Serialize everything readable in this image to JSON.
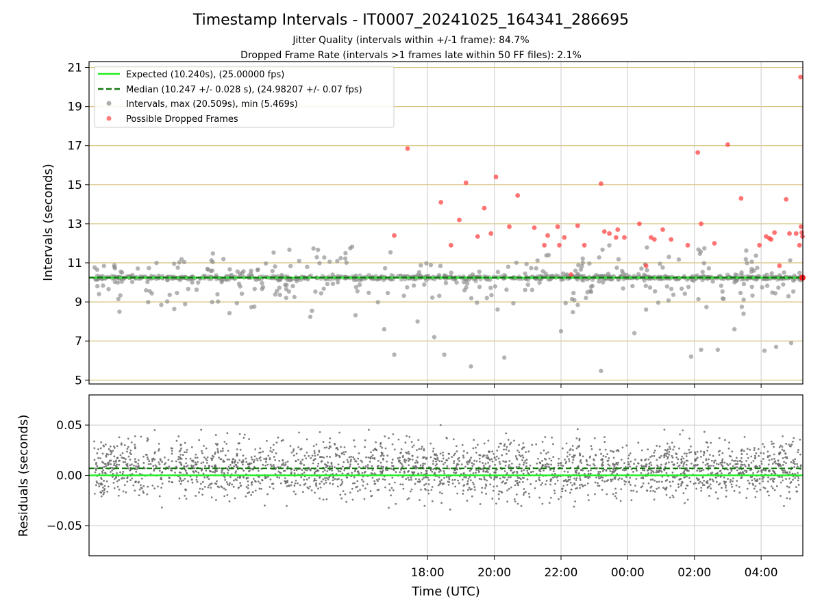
{
  "chart_data": [
    {
      "type": "scatter",
      "title": "Timestamp Intervals - IT0007_20241025_164341_286695",
      "subtitle_lines": [
        "Jitter Quality (intervals within +/-1 frame): 84.7%",
        "Dropped Frame Rate (intervals >1 frames late within 50 FF files): 2.1%"
      ],
      "ylabel": "Intervals (seconds)",
      "ylim": [
        4.8,
        21.3
      ],
      "xlim": [
        -16.15,
        5.25
      ],
      "yticks": [
        5,
        7,
        9,
        11,
        13,
        15,
        17,
        19,
        21
      ],
      "grid": true,
      "legend_position": "top-left",
      "colors": {
        "expected": "#22ee22",
        "median": "#117711",
        "intervals": "#8a8a8a",
        "dropped": "#ff4444",
        "hgrid": "#d8c27a"
      },
      "legend": [
        "Expected (10.240s), (25.00000 fps)",
        "Median (10.247 +/- 0.028 s), (24.98207 +/- 0.07 fps)",
        "Intervals, max (20.509s), min (5.469s)",
        "Possible Dropped Frames"
      ],
      "expected_interval": 10.24,
      "median_interval": 10.247,
      "series": [
        {
          "name": "Possible Dropped Frames",
          "kind": "dropped",
          "x": [
            -7.0,
            -6.6,
            -5.3,
            -5.05,
            -4.85,
            -4.5,
            -4.1,
            -3.95,
            -3.55,
            -3.3,
            -2.8,
            -2.5,
            -2.4,
            -2.1,
            -2.05,
            -1.9,
            -1.7,
            -1.5,
            -1.3,
            -0.8,
            -0.55,
            -0.35,
            -0.3,
            -0.1,
            0.35,
            0.55,
            0.7,
            0.8,
            1.05,
            1.3,
            1.8,
            2.1,
            2.2,
            2.6,
            3.0,
            3.4,
            3.95,
            4.15,
            4.25,
            4.3,
            4.4,
            4.55,
            4.75,
            4.85,
            5.05,
            5.15,
            5.2,
            5.22,
            5.24,
            -5.6,
            -4.3,
            -0.7
          ],
          "y": [
            12.4,
            16.85,
            11.9,
            13.2,
            15.1,
            12.35,
            12.5,
            15.4,
            12.85,
            14.45,
            12.8,
            11.9,
            12.4,
            12.85,
            11.9,
            12.3,
            10.4,
            12.9,
            11.9,
            15.05,
            12.5,
            12.3,
            12.7,
            12.3,
            13.0,
            10.85,
            12.3,
            12.2,
            12.7,
            12.2,
            11.9,
            16.65,
            13.0,
            12.0,
            17.05,
            14.3,
            11.9,
            12.35,
            12.25,
            12.2,
            12.55,
            10.85,
            14.25,
            12.5,
            12.5,
            11.9,
            12.85,
            12.55,
            12.35,
            14.1,
            13.8,
            12.6
          ],
          "x_extra_note": ""
        },
        {
          "name": "Residuals",
          "kind": "residuals",
          "ylabel": "Residuals (seconds)",
          "ylim": [
            -0.08,
            0.08
          ],
          "yticks": [
            0.05,
            0.0,
            -0.05
          ],
          "ytick_labels": [
            "0.05",
            "0.00",
            "−0.05"
          ],
          "expected": 0.0,
          "median": 0.007
        }
      ],
      "xticks": [
        -6,
        -4,
        -2,
        0,
        2,
        4
      ],
      "xtick_labels": [
        "18:00",
        "20:00",
        "22:00",
        "00:00",
        "02:00",
        "04:00"
      ],
      "xlabel": "Time (UTC)"
    }
  ]
}
